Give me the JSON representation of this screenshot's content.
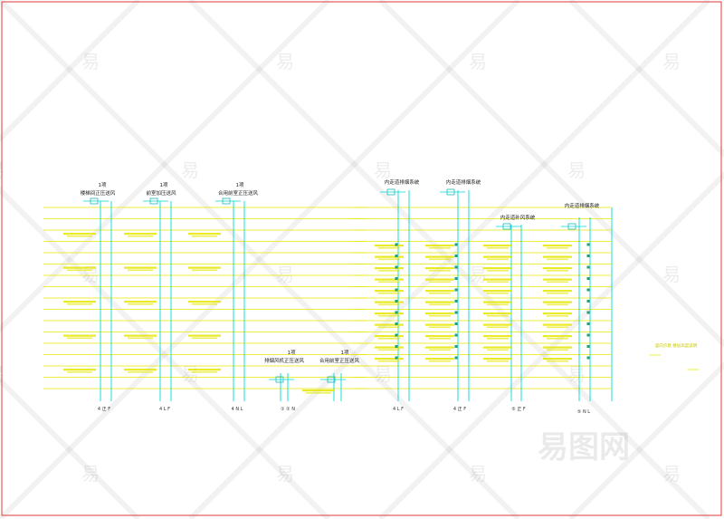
{
  "colors": {
    "frame": "#e03a3a",
    "floor_line": "#e8e800",
    "riser": "#00d8d8",
    "text": "#222222",
    "watermark": "#000000"
  },
  "systems": [
    {
      "number": "1项",
      "name": "楼梯间正压送风"
    },
    {
      "number": "1项",
      "name": "前室加压送风"
    },
    {
      "number": "1项",
      "name": "合用前室正压送风"
    },
    {
      "number": "1项",
      "name": "排烟风机正压送风"
    },
    {
      "number": "1项",
      "name": "合用前室正压送风"
    },
    {
      "number": "",
      "name": "内走道排烟系统"
    },
    {
      "number": "",
      "name": "内走道排烟系统"
    },
    {
      "number": "",
      "name": "内走道补风系统"
    },
    {
      "number": "",
      "name": "内走道排烟系统"
    }
  ],
  "bottom_labels": [
    "4 正 F",
    "4 L F",
    "4 N L",
    "① ② N",
    "4 L F",
    "4 正 F",
    "⑤ 正 F",
    "⑤ N L"
  ],
  "side_note": "竖向示意 楼层高度说明",
  "watermark": {
    "char": "易",
    "brand": "易图网"
  }
}
